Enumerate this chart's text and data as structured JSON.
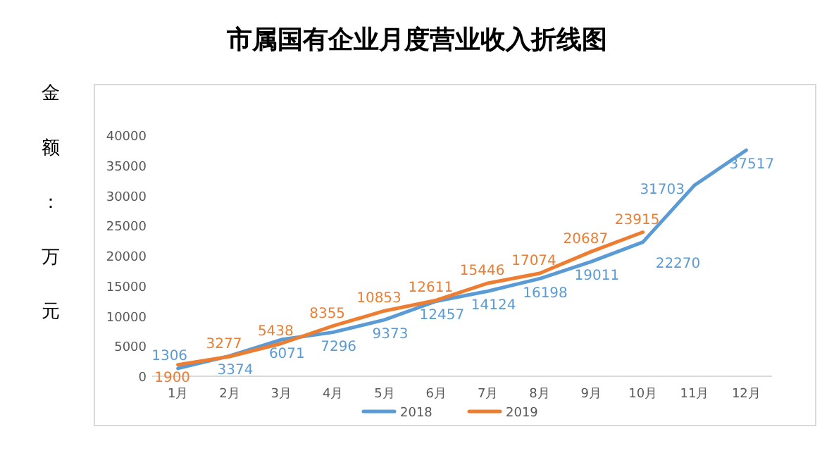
{
  "chart_data": {
    "type": "line",
    "title": "市属国有企业月度营业收入折线图",
    "ylabel": "金额：万元",
    "categories": [
      "1月",
      "2月",
      "3月",
      "4月",
      "5月",
      "6月",
      "7月",
      "8月",
      "9月",
      "10月",
      "11月",
      "12月"
    ],
    "series": [
      {
        "name": "2018",
        "color": "#5b9bd5",
        "values": [
          1306,
          3374,
          6071,
          7296,
          9373,
          12457,
          14124,
          16198,
          19011,
          22270,
          31703,
          37517
        ]
      },
      {
        "name": "2019",
        "color": "#ed7d31",
        "values": [
          1900,
          3277,
          5438,
          8355,
          10853,
          12611,
          15446,
          17074,
          20687,
          23915,
          null,
          null
        ]
      }
    ],
    "ylim": [
      0,
      40000
    ],
    "yticks": [
      0,
      5000,
      10000,
      15000,
      20000,
      25000,
      30000,
      35000,
      40000
    ],
    "data_labels": true,
    "legend": "bottom",
    "marker": "none",
    "line_style": "solid"
  }
}
